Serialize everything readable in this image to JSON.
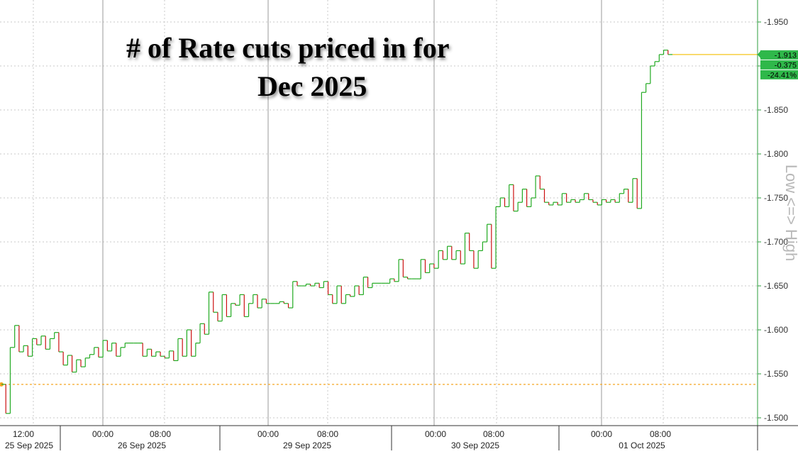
{
  "chart_data": {
    "type": "line",
    "title_line1": "# of Rate cuts priced in for",
    "title_line2": "Dec 2025",
    "ylabel": "Low <=> High",
    "ylim": [
      -1.5,
      -1.96
    ],
    "yticks": [
      "-1.950",
      "-1.900",
      "-1.850",
      "-1.800",
      "-1.750",
      "-1.700",
      "-1.650",
      "-1.600",
      "-1.550",
      "-1.500"
    ],
    "ytick_values": [
      -1.95,
      -1.9,
      -1.85,
      -1.8,
      -1.75,
      -1.7,
      -1.65,
      -1.6,
      -1.55,
      -1.5
    ],
    "xticks_time": [
      "12:00",
      "00:00",
      "08:00",
      "00:00",
      "08:00",
      "00:00",
      "08:00",
      "00:00",
      "08:00"
    ],
    "xticks_date": [
      "25 Sep 2025",
      "26 Sep 2025",
      "29 Sep 2025",
      "30 Sep 2025",
      "01 Oct 2025"
    ],
    "grid": true,
    "reference_line": -1.538,
    "last_value_labels": [
      "-1.913",
      "-0.375",
      "-24.41%"
    ],
    "colors": {
      "up": "#22aa22",
      "down": "#cc1111",
      "reference": "#f5a623",
      "last_line": "#f5c518",
      "badge_bg": "#2fb84a",
      "axis": "#2e9e3e",
      "grid": "#c8c8c8"
    },
    "series": [
      {
        "values": [
          -1.538,
          -1.505,
          -1.58,
          -1.605,
          -1.575,
          -1.582,
          -1.57,
          -1.59,
          -1.583,
          -1.593,
          -1.578,
          -1.59,
          -1.597,
          -1.575,
          -1.56,
          -1.571,
          -1.552,
          -1.566,
          -1.558,
          -1.568,
          -1.572,
          -1.58,
          -1.569,
          -1.588,
          -1.576,
          -1.585,
          -1.57,
          -1.58,
          -1.585,
          -1.585,
          -1.585,
          -1.585,
          -1.57,
          -1.578,
          -1.57,
          -1.575,
          -1.57,
          -1.568,
          -1.576,
          -1.565,
          -1.59,
          -1.57,
          -1.6,
          -1.57,
          -1.585,
          -1.607,
          -1.595,
          -1.643,
          -1.62,
          -1.61,
          -1.64,
          -1.615,
          -1.63,
          -1.628,
          -1.64,
          -1.615,
          -1.63,
          -1.64,
          -1.625,
          -1.635,
          -1.63,
          -1.63,
          -1.63,
          -1.632,
          -1.63,
          -1.625,
          -1.655,
          -1.65,
          -1.65,
          -1.652,
          -1.65,
          -1.653,
          -1.648,
          -1.655,
          -1.64,
          -1.63,
          -1.65,
          -1.63,
          -1.64,
          -1.638,
          -1.65,
          -1.64,
          -1.66,
          -1.648,
          -1.653,
          -1.653,
          -1.653,
          -1.653,
          -1.658,
          -1.655,
          -1.68,
          -1.66,
          -1.658,
          -1.658,
          -1.658,
          -1.68,
          -1.665,
          -1.675,
          -1.67,
          -1.69,
          -1.68,
          -1.695,
          -1.68,
          -1.69,
          -1.675,
          -1.71,
          -1.69,
          -1.67,
          -1.69,
          -1.7,
          -1.72,
          -1.67,
          -1.74,
          -1.75,
          -1.74,
          -1.765,
          -1.735,
          -1.745,
          -1.76,
          -1.74,
          -1.75,
          -1.775,
          -1.76,
          -1.745,
          -1.742,
          -1.745,
          -1.742,
          -1.755,
          -1.745,
          -1.748,
          -1.745,
          -1.748,
          -1.755,
          -1.748,
          -1.745,
          -1.742,
          -1.748,
          -1.745,
          -1.748,
          -1.745,
          -1.755,
          -1.76,
          -1.745,
          -1.772,
          -1.738,
          -1.87,
          -1.88,
          -1.9,
          -1.905,
          -1.913,
          -1.918,
          -1.913,
          -1.913
        ]
      }
    ]
  }
}
